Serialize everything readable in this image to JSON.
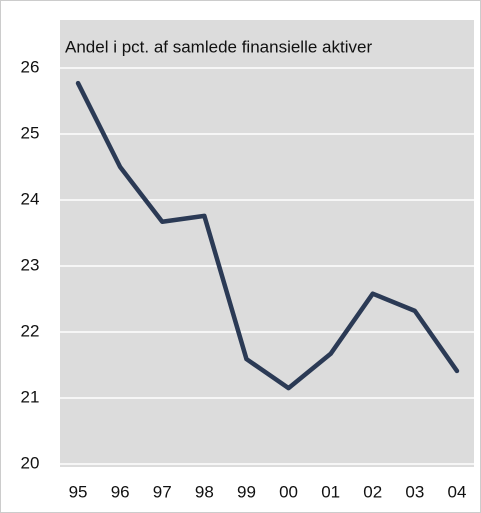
{
  "chart_data": {
    "type": "line",
    "title": "Andel i pct. af samlede finansielle aktiver",
    "categories": [
      "95",
      "96",
      "97",
      "98",
      "99",
      "00",
      "01",
      "02",
      "03",
      "04"
    ],
    "values": [
      25.77,
      24.5,
      23.67,
      23.76,
      21.59,
      21.15,
      21.67,
      22.58,
      22.32,
      21.41
    ],
    "color": "#2b3a55",
    "ylim": [
      20,
      26
    ],
    "yticks": [
      20,
      21,
      22,
      23,
      24,
      25,
      26
    ],
    "grid": true
  }
}
